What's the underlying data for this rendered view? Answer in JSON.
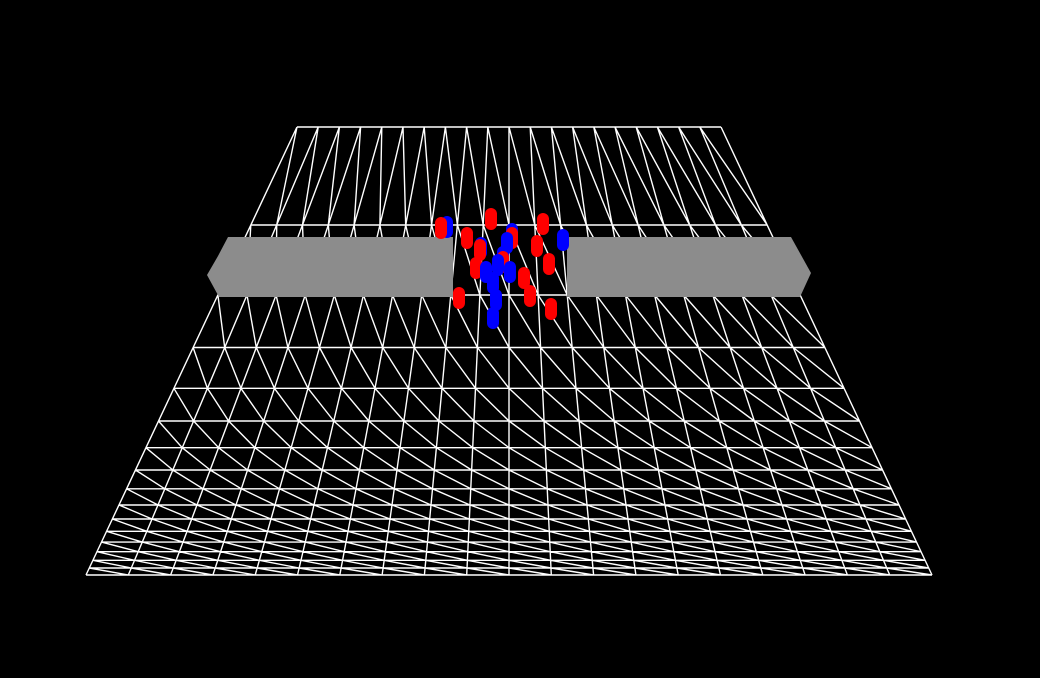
{
  "scene": {
    "background_color": "#000000",
    "floor": {
      "grid_color": "#ffffff",
      "rows": 16,
      "cols": 20
    },
    "barriers": {
      "color": "#8c8c8c",
      "count": 2,
      "gap": "center"
    },
    "agents": {
      "red": {
        "color": "#ff0000",
        "count": 14
      },
      "blue": {
        "color": "#0000ff",
        "count": 12
      }
    }
  }
}
